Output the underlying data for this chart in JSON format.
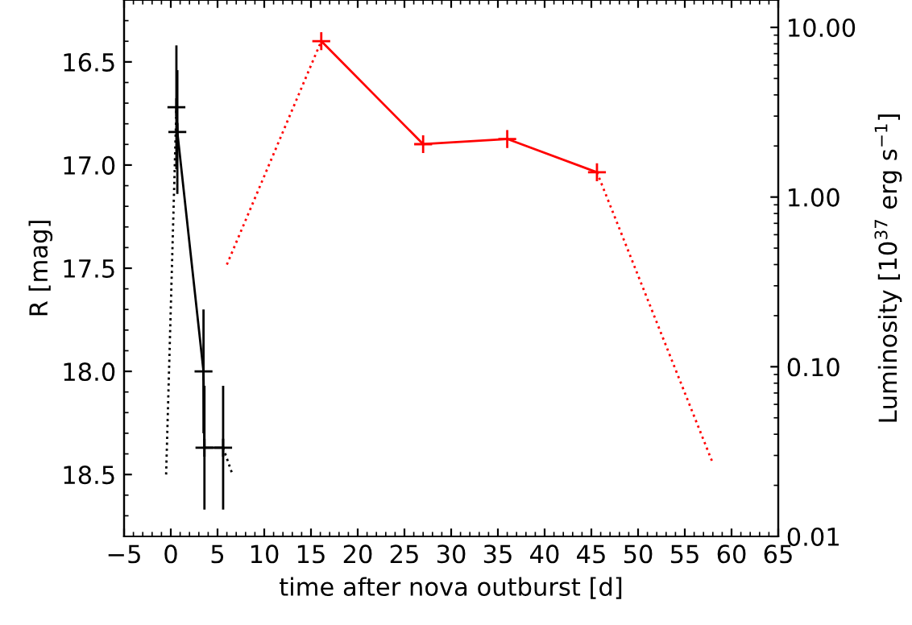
{
  "chart_data": {
    "type": "line",
    "xlabel": "time after nova outburst [d]",
    "ylabel": "R [mag]",
    "y2label": "Luminosity [10$^{37}$ erg s$^{−1}$]",
    "xlim": [
      -5,
      65
    ],
    "xticks": [
      {
        "value": -5,
        "label": "−5"
      },
      0,
      5,
      10,
      15,
      20,
      25,
      30,
      35,
      40,
      45,
      50,
      55,
      60,
      65
    ],
    "ylim": [
      18.8,
      16.2
    ],
    "yticks": [
      {
        "value": 16.5,
        "label": "16.5"
      },
      {
        "value": 17.0,
        "label": "17.0"
      },
      {
        "value": 17.5,
        "label": "17.5"
      },
      {
        "value": 18.0,
        "label": "18.0"
      },
      {
        "value": 18.5,
        "label": "18.5"
      }
    ],
    "y2lim": [
      0.01,
      14.5
    ],
    "y2ticks": [
      {
        "value": 0.01,
        "label": "0.01"
      },
      {
        "value": 0.1,
        "label": "0.10"
      },
      {
        "value": 1,
        "label": "1.00"
      },
      {
        "value": 10,
        "label": "10.00"
      }
    ],
    "log": "y2",
    "grid": false,
    "series": [
      {
        "color": "#000000",
        "x": [
          -0.5,
          0.6
        ],
        "values": [
          18.5,
          16.72
        ],
        "line_style": "dotted"
      },
      {
        "color": "#000000",
        "x": [
          0.6,
          0.7,
          3.5,
          3.6,
          5.6
        ],
        "values": [
          16.72,
          16.84,
          18.0,
          18.37,
          18.37
        ],
        "errors": [
          0.3,
          0.3,
          0.3,
          0.3,
          0.3
        ],
        "line_style": "solid",
        "marker": "cross"
      },
      {
        "color": "#000000",
        "x": [
          5.6,
          6.6
        ],
        "values": [
          18.37,
          18.5
        ],
        "line_style": "dotted",
        "marker": "none"
      },
      {
        "color": "#ff0000",
        "axis": "y2",
        "x": [
          6.0,
          16.1
        ],
        "values": [
          0.4,
          8.3
        ],
        "line_style": "dotted"
      },
      {
        "color": "#ff0000",
        "axis": "y2",
        "x": [
          16.1,
          27.0,
          36.0,
          45.6
        ],
        "values": [
          8.3,
          2.05,
          2.2,
          1.4
        ],
        "line_style": "solid",
        "marker": "cross"
      },
      {
        "color": "#ff0000",
        "axis": "y2",
        "x": [
          45.6,
          58.0
        ],
        "values": [
          1.4,
          0.027
        ],
        "line_style": "dotted",
        "marker": "none"
      }
    ]
  }
}
